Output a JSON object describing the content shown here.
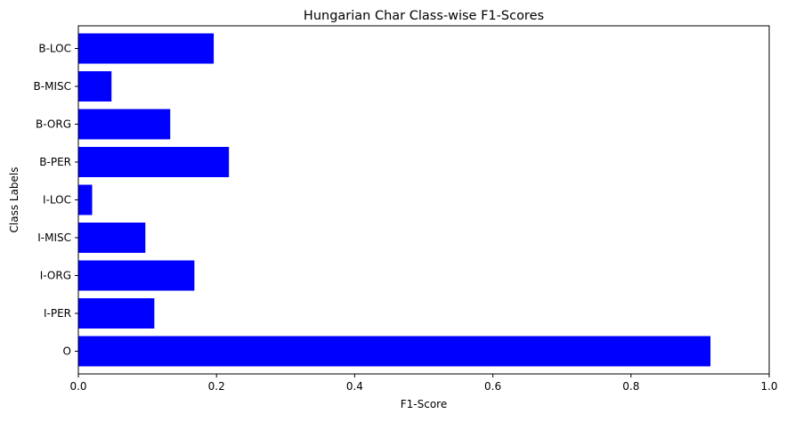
{
  "chart_data": {
    "type": "bar",
    "orientation": "horizontal",
    "title": "Hungarian Char Class-wise F1-Scores",
    "xlabel": "F1-Score",
    "ylabel": "Class Labels",
    "xlim": [
      0,
      1.0
    ],
    "xticks": [
      "0.0",
      "0.2",
      "0.4",
      "0.6",
      "0.8",
      "1.0"
    ],
    "categories": [
      "O",
      "I-PER",
      "I-ORG",
      "I-MISC",
      "I-LOC",
      "B-PER",
      "B-ORG",
      "B-MISC",
      "B-LOC"
    ],
    "values": [
      0.915,
      0.11,
      0.168,
      0.097,
      0.02,
      0.218,
      0.133,
      0.048,
      0.196
    ],
    "bar_color": "#0000ff",
    "grid": false,
    "legend": "none"
  }
}
